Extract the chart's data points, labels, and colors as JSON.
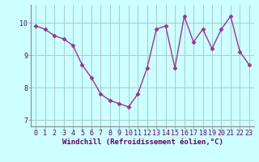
{
  "x": [
    0,
    1,
    2,
    3,
    4,
    5,
    6,
    7,
    8,
    9,
    10,
    11,
    12,
    13,
    14,
    15,
    16,
    17,
    18,
    19,
    20,
    21,
    22,
    23
  ],
  "y": [
    9.9,
    9.8,
    9.6,
    9.5,
    9.3,
    8.7,
    8.3,
    7.8,
    7.6,
    7.5,
    7.4,
    7.8,
    8.6,
    9.8,
    9.9,
    8.6,
    10.2,
    9.4,
    9.8,
    9.2,
    9.8,
    10.2,
    9.1,
    8.7
  ],
  "line_color": "#993399",
  "marker": "D",
  "markersize": 2.5,
  "linewidth": 1.0,
  "background_color": "#ccffff",
  "grid_color": "#aacccc",
  "xlabel": "Windchill (Refroidissement éolien,°C)",
  "xlabel_fontsize": 6.5,
  "tick_fontsize": 6.0,
  "ylim": [
    6.8,
    10.55
  ],
  "yticks": [
    7,
    8,
    9,
    10
  ],
  "xticks": [
    0,
    1,
    2,
    3,
    4,
    5,
    6,
    7,
    8,
    9,
    10,
    11,
    12,
    13,
    14,
    15,
    16,
    17,
    18,
    19,
    20,
    21,
    22,
    23
  ]
}
